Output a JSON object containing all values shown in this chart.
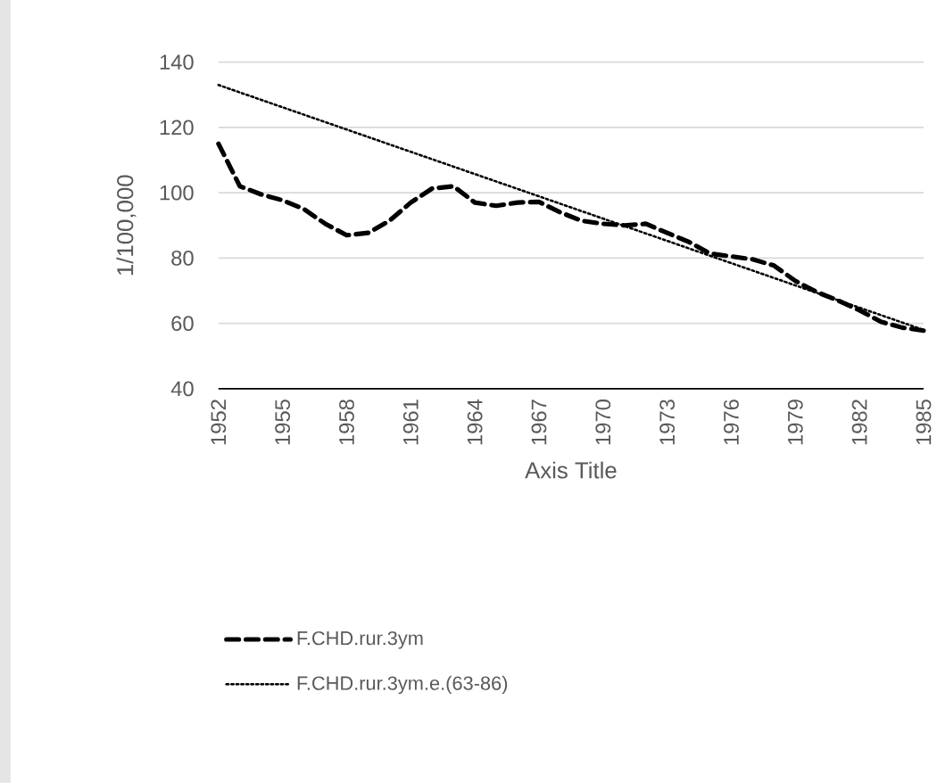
{
  "chart_data": {
    "type": "line",
    "xlabel": "Axis Title",
    "ylabel": "1/100,000",
    "x": [
      1952,
      1953,
      1954,
      1955,
      1956,
      1957,
      1958,
      1959,
      1960,
      1961,
      1962,
      1963,
      1964,
      1965,
      1966,
      1967,
      1968,
      1969,
      1970,
      1971,
      1972,
      1973,
      1974,
      1975,
      1976,
      1977,
      1978,
      1979,
      1980,
      1981,
      1982,
      1983,
      1984,
      1985
    ],
    "series": [
      {
        "name": "F.CHD.rur.3ym",
        "color": "#000000",
        "line_style": "dashed",
        "values": [
          115,
          102,
          99.5,
          97.7,
          95,
          90.5,
          87,
          87.7,
          91.4,
          97,
          101.3,
          102,
          97,
          96,
          97,
          97.2,
          94,
          91.4,
          90.5,
          90,
          90.5,
          87.7,
          85,
          81.4,
          80.5,
          79.6,
          77.7,
          73,
          69.6,
          67,
          64,
          60.5,
          58.7,
          57.8
        ]
      },
      {
        "name": "F.CHD.rur.3ym.e.(63-86)",
        "color": "#000000",
        "line_style": "dotted",
        "x": [
          1952,
          1985
        ],
        "values": [
          133,
          58
        ]
      }
    ],
    "xlim": [
      1952,
      1985
    ],
    "xticks": [
      1952,
      1955,
      1958,
      1961,
      1964,
      1967,
      1970,
      1973,
      1976,
      1979,
      1982,
      1985
    ],
    "ylim": [
      40,
      140
    ],
    "yticks": [
      40,
      60,
      80,
      100,
      120,
      140
    ],
    "grid": "y",
    "legend": "bottom",
    "marker": "none"
  }
}
